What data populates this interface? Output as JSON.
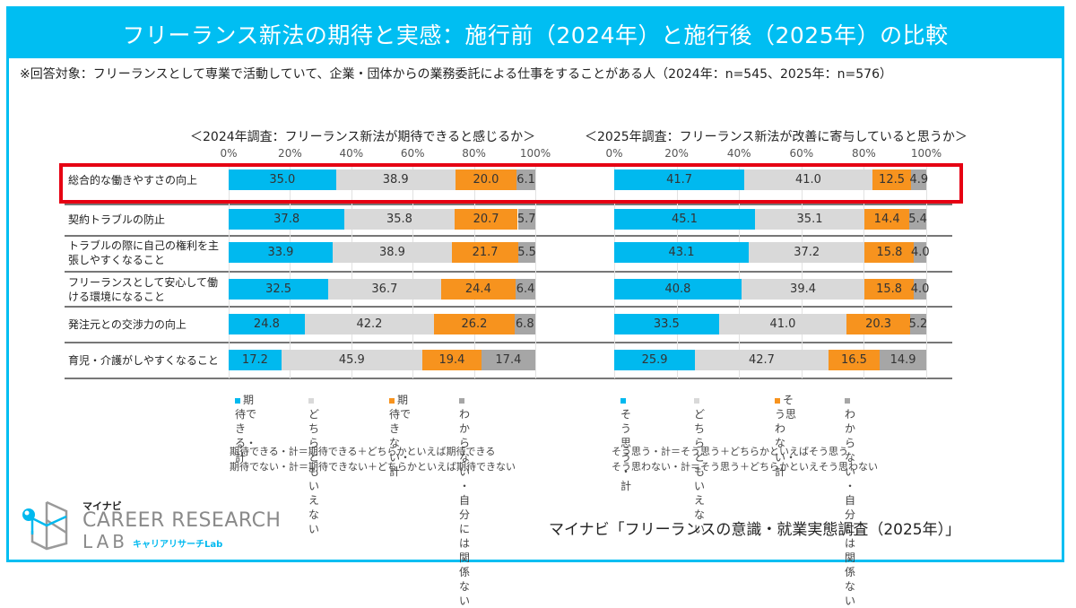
{
  "header": {
    "title": "フリーランス新法の期待と実感：施行前（2024年）と施行後（2025年）の比較"
  },
  "note": "※回答対象：フリーランスとして専業で活動していて、企業・団体からの業務委託による仕事をすることがある人（2024年：n=545、2025年：n=576）",
  "colors": {
    "blue": "#00B9EF",
    "lightgray": "#D9D9D9",
    "orange": "#F7931E",
    "darkgray": "#A6A6A6",
    "frame": "#00BEF2",
    "highlight": "#E60012"
  },
  "chart_data": [
    {
      "type": "bar",
      "stacked": true,
      "orientation": "horizontal",
      "title": "＜2024年調査：フリーランス新法が期待できると感じるか＞",
      "xlim": [
        0,
        100
      ],
      "xticks": [
        "0%",
        "20%",
        "40%",
        "60%",
        "80%",
        "100%"
      ],
      "categories": [
        "総合的な働きやすさの向上",
        "契約トラブルの防止",
        "トラブルの際に自己の権利を主張しやすくなること",
        "フリーランスとして安心して働ける環境になること",
        "発注元との交渉力の向上",
        "育児・介護がしやすくなること"
      ],
      "series": [
        {
          "name": "期待できる・計",
          "color": "#00B9EF",
          "values": [
            35.0,
            37.8,
            33.9,
            32.5,
            24.8,
            17.2
          ]
        },
        {
          "name": "どちらともいえない",
          "color": "#D9D9D9",
          "values": [
            38.9,
            35.8,
            38.9,
            36.7,
            42.2,
            45.9
          ]
        },
        {
          "name": "期待できない・計",
          "color": "#F7931E",
          "values": [
            20.0,
            20.7,
            21.7,
            24.4,
            26.2,
            19.4
          ]
        },
        {
          "name": "わからない・自分には関係ない",
          "color": "#A6A6A6",
          "values": [
            6.1,
            5.7,
            5.5,
            6.4,
            6.8,
            17.4
          ]
        }
      ],
      "legend": [
        {
          "label": "期待でき\nる・計",
          "color": "#00B9EF"
        },
        {
          "label": "どちらと\nもいえない",
          "color": "#D9D9D9"
        },
        {
          "label": "期待でき\nない・計",
          "color": "#F7931E"
        },
        {
          "label": "わからない\n・自分には関\n係ない",
          "color": "#A6A6A6"
        }
      ],
      "definitions": [
        "期待できる・計＝期待できる＋どちらかといえば期待できる",
        "期待でない・計＝期待できない＋どちらかといえば期待できない"
      ]
    },
    {
      "type": "bar",
      "stacked": true,
      "orientation": "horizontal",
      "title": "＜2025年調査：フリーランス新法が改善に寄与していると思うか＞",
      "xlim": [
        0,
        100
      ],
      "xticks": [
        "0%",
        "20%",
        "40%",
        "60%",
        "80%",
        "100%"
      ],
      "categories": [
        "総合的な働きやすさの向上",
        "契約トラブルの防止",
        "トラブルの際に自己の権利を主張しやすくなること",
        "フリーランスとして安心して働ける環境になること",
        "発注元との交渉力の向上",
        "育児・介護がしやすくなること"
      ],
      "series": [
        {
          "name": "そう思う・計",
          "color": "#00B9EF",
          "values": [
            41.7,
            45.1,
            43.1,
            40.8,
            33.5,
            25.9
          ]
        },
        {
          "name": "どちらともいえない",
          "color": "#D9D9D9",
          "values": [
            41.0,
            35.1,
            37.2,
            39.4,
            41.0,
            42.7
          ]
        },
        {
          "name": "そう思わない・計",
          "color": "#F7931E",
          "values": [
            12.5,
            14.4,
            15.8,
            15.8,
            20.3,
            16.5
          ]
        },
        {
          "name": "わからない・自分には関係ない",
          "color": "#A6A6A6",
          "values": [
            4.9,
            5.4,
            4.0,
            4.0,
            5.2,
            14.9
          ]
        }
      ],
      "legend": [
        {
          "label": "そう思う\n・計",
          "color": "#00B9EF"
        },
        {
          "label": "どちらと\nもいえない",
          "color": "#D9D9D9"
        },
        {
          "label": "そう思わ\nない・計",
          "color": "#F7931E"
        },
        {
          "label": "わからない\n・自分には関\n係ない",
          "color": "#A6A6A6"
        }
      ],
      "definitions": [
        "そう思う・計＝そう思う＋どちらかといえばそう思う",
        "そう思わない・計＝そう思う＋どちらかといえそう思わない"
      ]
    }
  ],
  "row_labels": [
    "総合的な働きやすさの向上",
    "契約トラブルの防止",
    "トラブルの際に自己の権利を主\n張しやすくなること",
    "フリーランスとして安心して働\nける環境になること",
    "発注元との交渉力の向上",
    "育児・介護がしやすくなること"
  ],
  "highlighted_row": 0,
  "logo": {
    "brand": "マイナビ",
    "line1": "CAREER RESEARCH",
    "line2": "LAB",
    "sub": "キャリアリサーチLab"
  },
  "source": "マイナビ「フリーランスの意識・就業実態調査（2025年）」"
}
